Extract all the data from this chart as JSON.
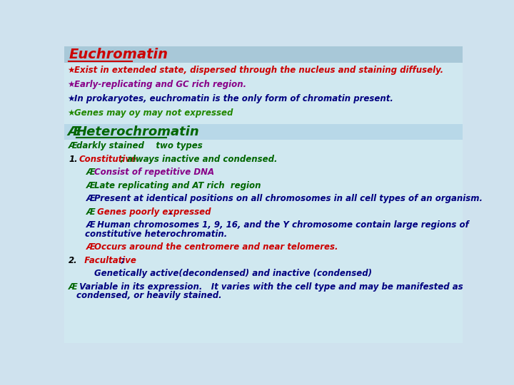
{
  "bg_color": "#cfe2ee",
  "title_bg": "#a8c8d8",
  "title_text": "Euchromatin",
  "title_color": "#cc0000",
  "hetero_title_color": "#006600",
  "eu_lines": [
    {
      "bullet": "★",
      "bullet_color": "#cc0000",
      "text": "Exist in extended state, dispersed through the nucleus and staining diffusely.",
      "color": "#cc0000"
    },
    {
      "bullet": "★",
      "bullet_color": "#880088",
      "text": "Early-replicating and GC rich region.",
      "color": "#880088"
    },
    {
      "bullet": "★",
      "bullet_color": "#000080",
      "text": "In prokaryotes, euchromatin is the only form of chromatin present.",
      "color": "#000080"
    },
    {
      "bullet": "★",
      "bullet_color": "#228800",
      "text": "Genes may oy may not expressed",
      "color": "#228800"
    }
  ],
  "hetero_lines": [
    {
      "indent": 0,
      "bullet": "Æ",
      "bullet_color": "#006600",
      "parts": [
        {
          "text": "darkly stained    two types",
          "color": "#006600"
        }
      ]
    },
    {
      "indent": 0,
      "bullet": "1.",
      "bullet_color": "#000000",
      "parts": [
        {
          "text": "Constitutive",
          "color": "#cc0000"
        },
        {
          "text": " ; always inactive and condensed.",
          "color": "#006600"
        }
      ]
    },
    {
      "indent": 1,
      "bullet": "Æ",
      "bullet_color": "#006600",
      "parts": [
        {
          "text": "Consist of repetitive DNA",
          "color": "#880088"
        }
      ]
    },
    {
      "indent": 1,
      "bullet": "Æ",
      "bullet_color": "#006600",
      "parts": [
        {
          "text": "Late replicating and AT rich  region",
          "color": "#006600"
        }
      ]
    },
    {
      "indent": 1,
      "bullet": "Æ",
      "bullet_color": "#000080",
      "parts": [
        {
          "text": "Present at identical positions on all chromosomes in all cell types of an organism.",
          "color": "#000080"
        }
      ]
    },
    {
      "indent": 1,
      "bullet": "Æ",
      "bullet_color": "#006600",
      "parts": [
        {
          "text": " Genes poorly expressed",
          "color": "#cc0000"
        },
        {
          "text": ".",
          "color": "#000080"
        }
      ]
    },
    {
      "indent": 1,
      "bullet": "Æ",
      "bullet_color": "#000080",
      "parts": [
        {
          "text": " Human chromosomes 1, 9, 16, and the Y chromosome contain large regions of",
          "color": "#000080"
        },
        {
          "text": "\nconstitutive heterochromatin.",
          "color": "#000080",
          "newline": true,
          "newline_indent": 38
        }
      ]
    },
    {
      "indent": 1,
      "bullet": "Æ",
      "bullet_color": "#cc0000",
      "parts": [
        {
          "text": "Occurs around the centromere and near telomeres.",
          "color": "#cc0000"
        }
      ]
    },
    {
      "indent": 0,
      "bullet": "2.",
      "bullet_color": "#000000",
      "parts": [
        {
          "text": "  Facultative",
          "color": "#cc0000"
        },
        {
          "text": ";",
          "color": "#000080"
        }
      ]
    },
    {
      "indent": 1,
      "bullet": "",
      "bullet_color": "#000000",
      "parts": [
        {
          "text": "Genetically active(decondensed) and inactive (condensed)",
          "color": "#000080"
        }
      ]
    },
    {
      "indent": 0,
      "bullet": "Æ",
      "bullet_color": "#006600",
      "parts": [
        {
          "text": " Variable in its expression.   It varies with the cell type and may be manifested as",
          "color": "#000080"
        },
        {
          "text": "\ncondensed, or heavily stained.",
          "color": "#000080",
          "newline": true,
          "newline_indent": 22
        }
      ]
    }
  ]
}
